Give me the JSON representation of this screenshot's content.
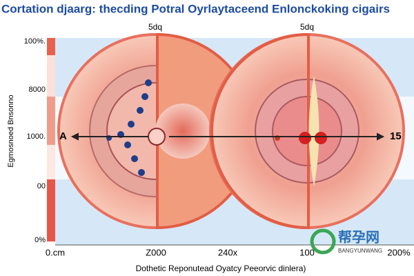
{
  "header": {
    "title": "Cortation djaarg: thecding Potral Oyrlaytaceend Enlonckoking cigairs"
  },
  "top_labels": [
    "5dq",
    "5dq"
  ],
  "y_labels": [
    "100%.",
    "8000",
    "1000.",
    "00",
    "0%"
  ],
  "y_axis_title": "Egmosnoed Bnsonno",
  "x_labels": [
    "0.cm",
    "Z000",
    "240x",
    "100",
    "200%"
  ],
  "x_axis_title": "Dothetic Reponutead Oyatcy Peeorvic dinlera)",
  "markers": {
    "left": "A",
    "right": "15"
  },
  "watermark": {
    "name": "帮孕网",
    "sub": "BANGYUNWANG"
  }
}
